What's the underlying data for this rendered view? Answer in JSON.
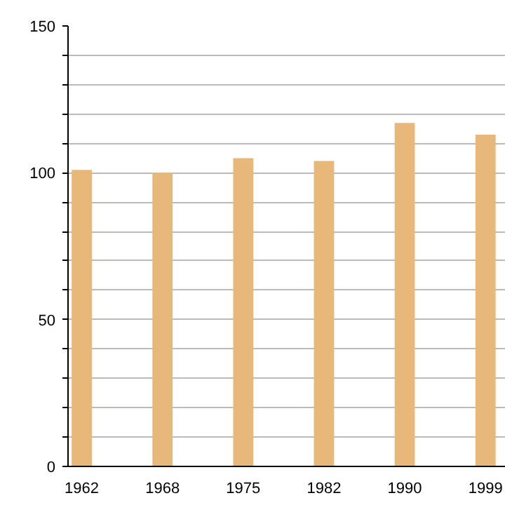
{
  "chart_data": {
    "type": "bar",
    "categories": [
      "1962",
      "1968",
      "1975",
      "1982",
      "1990",
      "1999"
    ],
    "values": [
      101,
      100,
      105,
      104,
      117,
      113
    ],
    "color": "#e8b87b",
    "ylim": [
      0,
      150
    ],
    "yticks": [
      0,
      {
        "value": 10,
        "label": null
      },
      {
        "value": 20,
        "label": null
      },
      {
        "value": 30,
        "label": null
      },
      {
        "value": 40,
        "label": null
      },
      50,
      {
        "value": 60,
        "label": null
      },
      {
        "value": 70,
        "label": null
      },
      {
        "value": 80,
        "label": null
      },
      {
        "value": 90,
        "label": null
      },
      100,
      {
        "value": 110,
        "label": null
      },
      {
        "value": 120,
        "label": null
      },
      {
        "value": 130,
        "label": null
      },
      {
        "value": 140,
        "label": null
      },
      150
    ],
    "grid": "y"
  }
}
